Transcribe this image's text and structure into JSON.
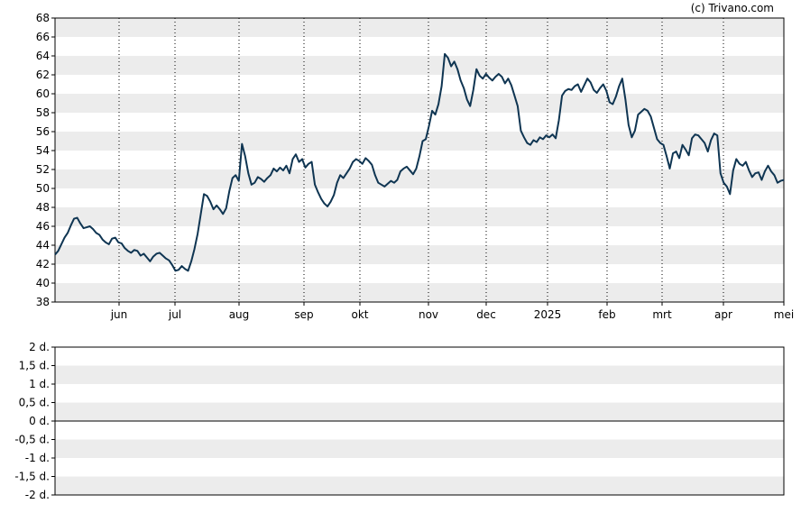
{
  "credit": "(c) Trivano.com",
  "chart_data": [
    {
      "type": "line",
      "title": "",
      "xlabel": "",
      "ylabel": "",
      "ylim": [
        38,
        68
      ],
      "yticks": [
        38,
        40,
        42,
        44,
        46,
        48,
        50,
        52,
        54,
        56,
        58,
        60,
        62,
        64,
        66,
        68
      ],
      "xticks": [
        "jun",
        "jul",
        "aug",
        "sep",
        "okt",
        "nov",
        "dec",
        "2025",
        "feb",
        "mrt",
        "apr",
        "mei"
      ],
      "grid": "horizontal bands, dotted vertical lines at month ticks",
      "line_color": "#0f3552",
      "series": [
        {
          "values": [
            43.0,
            43.4,
            44.1,
            44.8,
            45.3,
            46.1,
            46.8,
            46.9,
            46.3,
            45.8,
            45.9,
            46.0,
            45.7,
            45.3,
            45.1,
            44.6,
            44.3,
            44.1,
            44.7,
            44.8,
            44.3,
            44.2,
            43.7,
            43.4,
            43.2,
            43.5,
            43.4,
            42.9,
            43.1,
            42.7,
            42.3,
            42.8,
            43.1,
            43.2,
            42.9,
            42.6,
            42.4,
            41.9,
            41.3,
            41.4,
            41.8,
            41.5,
            41.3,
            42.3,
            43.6,
            45.2,
            47.3,
            49.4,
            49.2,
            48.6,
            47.8,
            48.2,
            47.8,
            47.3,
            47.9,
            49.7,
            51.1,
            51.4,
            50.8,
            54.7,
            53.4,
            51.6,
            50.4,
            50.6,
            51.2,
            51.0,
            50.7,
            51.1,
            51.4,
            52.1,
            51.8,
            52.2,
            51.9,
            52.4,
            51.6,
            53.1,
            53.6,
            52.8,
            53.1,
            52.2,
            52.6,
            52.8,
            50.4,
            49.6,
            48.9,
            48.4,
            48.1,
            48.6,
            49.3,
            50.6,
            51.4,
            51.1,
            51.6,
            52.1,
            52.8,
            53.1,
            52.9,
            52.6,
            53.2,
            52.9,
            52.5,
            51.4,
            50.6,
            50.4,
            50.2,
            50.5,
            50.8,
            50.6,
            50.9,
            51.8,
            52.1,
            52.3,
            51.9,
            51.5,
            52.1,
            53.4,
            55.0,
            55.2,
            56.6,
            58.2,
            57.8,
            58.9,
            60.8,
            64.2,
            63.8,
            62.9,
            63.4,
            62.6,
            61.4,
            60.6,
            59.4,
            58.7,
            60.4,
            62.6,
            61.9,
            61.6,
            62.1,
            61.7,
            61.4,
            61.8,
            62.1,
            61.8,
            61.1,
            61.6,
            60.9,
            59.8,
            58.7,
            56.1,
            55.4,
            54.8,
            54.6,
            55.1,
            54.9,
            55.4,
            55.2,
            55.6,
            55.4,
            55.7,
            55.3,
            57.2,
            59.8,
            60.3,
            60.5,
            60.4,
            60.8,
            61.0,
            60.2,
            60.9,
            61.6,
            61.2,
            60.4,
            60.1,
            60.6,
            61.0,
            60.3,
            59.1,
            58.9,
            59.7,
            60.8,
            61.6,
            59.4,
            56.7,
            55.4,
            56.1,
            57.8,
            58.1,
            58.4,
            58.2,
            57.6,
            56.4,
            55.2,
            54.8,
            54.6,
            53.4,
            52.1,
            53.7,
            53.9,
            53.2,
            54.6,
            54.1,
            53.5,
            55.3,
            55.7,
            55.6,
            55.2,
            54.8,
            53.9,
            55.1,
            55.8,
            55.6,
            51.6,
            50.6,
            50.2,
            49.4,
            51.9,
            53.1,
            52.6,
            52.4,
            52.8,
            51.9,
            51.2,
            51.6,
            51.7,
            50.9,
            51.8,
            52.4,
            51.8,
            51.4,
            50.6,
            50.8,
            50.9
          ]
        }
      ]
    },
    {
      "type": "line",
      "title": "",
      "xlabel": "",
      "ylabel": "",
      "ylim": [
        -2,
        2
      ],
      "yticks": [
        "2 d.",
        "1,5 d.",
        "1 d.",
        "0,5 d.",
        "0 d.",
        "-0,5 d.",
        "-1 d.",
        "-1,5 d.",
        "-2 d."
      ],
      "series": []
    }
  ]
}
